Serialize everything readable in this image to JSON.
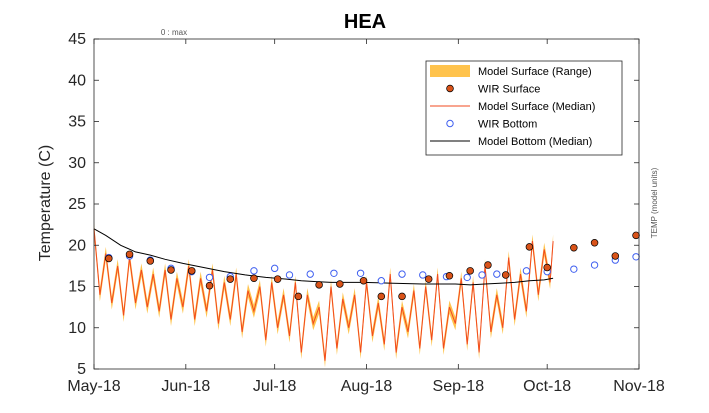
{
  "chart_data": {
    "type": "line",
    "title": "HEA",
    "ylabel": "Temperature (C)",
    "xlabel": "",
    "right_label": "TEMP (model units)",
    "top_note": "0 : max",
    "ylim": [
      5,
      45
    ],
    "yticks": [
      5,
      10,
      15,
      20,
      25,
      30,
      35,
      40,
      45
    ],
    "xlim": [
      "2018-05-01",
      "2018-11-01"
    ],
    "xticks": [
      {
        "date": "2018-05-01",
        "label": "May-18"
      },
      {
        "date": "2018-06-01",
        "label": "Jun-18"
      },
      {
        "date": "2018-07-01",
        "label": "Jul-18"
      },
      {
        "date": "2018-08-01",
        "label": "Aug-18"
      },
      {
        "date": "2018-09-01",
        "label": "Sep-18"
      },
      {
        "date": "2018-10-01",
        "label": "Oct-18"
      },
      {
        "date": "2018-11-01",
        "label": "Nov-18"
      }
    ],
    "grid": false,
    "legend_position": "top-right",
    "legend": [
      {
        "label": "Model Surface (Range)",
        "kind": "patch",
        "color": "#FFC34D"
      },
      {
        "label": "WIR Surface",
        "kind": "filled-circle",
        "color": "#D95319"
      },
      {
        "label": "Model Surface (Median)",
        "kind": "line",
        "color": "#F24A1F"
      },
      {
        "label": "WIR Bottom",
        "kind": "open-circle",
        "color": "#4060F0"
      },
      {
        "label": "Model Bottom (Median)",
        "kind": "line",
        "color": "#000000"
      }
    ],
    "series": [
      {
        "name": "WIR Surface",
        "marker": "filled-circle",
        "color": "#D95319",
        "x": [
          "2018-05-06",
          "2018-05-13",
          "2018-05-20",
          "2018-05-27",
          "2018-06-03",
          "2018-06-09",
          "2018-06-16",
          "2018-06-24",
          "2018-07-02",
          "2018-07-09",
          "2018-07-16",
          "2018-07-23",
          "2018-07-31",
          "2018-08-06",
          "2018-08-13",
          "2018-08-22",
          "2018-08-29",
          "2018-09-05",
          "2018-09-11",
          "2018-09-17",
          "2018-09-25",
          "2018-10-01",
          "2018-10-10",
          "2018-10-17",
          "2018-10-24",
          "2018-10-31"
        ],
        "y": [
          18.4,
          18.9,
          18.1,
          17.0,
          16.9,
          15.1,
          15.9,
          16.0,
          15.9,
          13.8,
          15.2,
          15.3,
          15.7,
          13.8,
          13.8,
          15.9,
          16.3,
          16.9,
          17.6,
          16.4,
          19.8,
          17.3,
          19.7,
          20.3,
          18.7,
          21.2
        ]
      },
      {
        "name": "WIR Bottom",
        "marker": "open-circle",
        "color": "#4060F0",
        "x": [
          "2018-05-06",
          "2018-05-13",
          "2018-05-20",
          "2018-05-27",
          "2018-06-03",
          "2018-06-09",
          "2018-06-16",
          "2018-06-24",
          "2018-07-01",
          "2018-07-06",
          "2018-07-13",
          "2018-07-21",
          "2018-07-30",
          "2018-08-06",
          "2018-08-13",
          "2018-08-20",
          "2018-08-28",
          "2018-09-04",
          "2018-09-09",
          "2018-09-14",
          "2018-09-24",
          "2018-10-01",
          "2018-10-10",
          "2018-10-17",
          "2018-10-24",
          "2018-10-31"
        ],
        "y": [
          18.5,
          18.7,
          18.2,
          17.2,
          16.8,
          16.1,
          16.2,
          16.9,
          17.2,
          16.4,
          16.5,
          16.6,
          16.6,
          15.7,
          16.5,
          16.4,
          16.2,
          16.1,
          16.4,
          16.5,
          16.9,
          16.8,
          17.1,
          17.6,
          18.2,
          18.6
        ]
      },
      {
        "name": "Model Bottom (Median)",
        "line": true,
        "color": "#000000",
        "x": [
          "2018-05-01",
          "2018-05-05",
          "2018-05-10",
          "2018-05-15",
          "2018-05-20",
          "2018-05-25",
          "2018-05-31",
          "2018-06-07",
          "2018-06-14",
          "2018-06-21",
          "2018-06-28",
          "2018-07-05",
          "2018-07-10",
          "2018-07-15",
          "2018-07-20",
          "2018-07-31",
          "2018-08-10",
          "2018-08-20",
          "2018-08-31",
          "2018-09-05",
          "2018-09-10",
          "2018-09-15",
          "2018-09-20",
          "2018-09-25",
          "2018-09-30",
          "2018-10-03"
        ],
        "y": [
          22.0,
          21.2,
          20.0,
          19.2,
          18.8,
          18.3,
          17.8,
          17.3,
          16.8,
          16.4,
          16.1,
          15.9,
          15.7,
          15.6,
          15.5,
          15.5,
          15.4,
          15.3,
          15.3,
          15.2,
          15.3,
          15.4,
          15.5,
          15.7,
          15.8,
          16.0
        ]
      },
      {
        "name": "Model Surface (Median)",
        "line": true,
        "color": "#F24A1F",
        "x": [
          "2018-05-01",
          "2018-05-03",
          "2018-05-05",
          "2018-05-07",
          "2018-05-09",
          "2018-05-11",
          "2018-05-13",
          "2018-05-15",
          "2018-05-17",
          "2018-05-19",
          "2018-05-21",
          "2018-05-23",
          "2018-05-25",
          "2018-05-27",
          "2018-05-29",
          "2018-05-31",
          "2018-06-02",
          "2018-06-04",
          "2018-06-06",
          "2018-06-08",
          "2018-06-10",
          "2018-06-12",
          "2018-06-14",
          "2018-06-16",
          "2018-06-18",
          "2018-06-20",
          "2018-06-22",
          "2018-06-24",
          "2018-06-26",
          "2018-06-28",
          "2018-06-30",
          "2018-07-02",
          "2018-07-04",
          "2018-07-06",
          "2018-07-08",
          "2018-07-10",
          "2018-07-12",
          "2018-07-14",
          "2018-07-16",
          "2018-07-18",
          "2018-07-20",
          "2018-07-22",
          "2018-07-24",
          "2018-07-26",
          "2018-07-28",
          "2018-07-30",
          "2018-08-01",
          "2018-08-03",
          "2018-08-05",
          "2018-08-07",
          "2018-08-09",
          "2018-08-11",
          "2018-08-13",
          "2018-08-15",
          "2018-08-17",
          "2018-08-19",
          "2018-08-21",
          "2018-08-23",
          "2018-08-25",
          "2018-08-27",
          "2018-08-29",
          "2018-08-31",
          "2018-09-02",
          "2018-09-04",
          "2018-09-06",
          "2018-09-08",
          "2018-09-10",
          "2018-09-12",
          "2018-09-14",
          "2018-09-16",
          "2018-09-18",
          "2018-09-20",
          "2018-09-22",
          "2018-09-24",
          "2018-09-26",
          "2018-09-28",
          "2018-09-30",
          "2018-10-02",
          "2018-10-03"
        ],
        "y": [
          22.0,
          14.0,
          19.0,
          13.0,
          17.5,
          11.5,
          18.5,
          13.0,
          17.0,
          12.5,
          16.5,
          12.0,
          17.0,
          11.0,
          16.0,
          12.5,
          17.5,
          11.0,
          16.0,
          12.0,
          17.0,
          10.5,
          15.5,
          11.0,
          16.5,
          9.5,
          14.5,
          12.0,
          15.0,
          8.5,
          15.5,
          10.0,
          14.0,
          9.0,
          15.5,
          7.0,
          14.0,
          10.5,
          12.5,
          6.0,
          15.0,
          7.5,
          13.5,
          10.0,
          14.0,
          7.0,
          15.5,
          9.0,
          13.0,
          8.0,
          16.5,
          7.0,
          12.5,
          9.5,
          14.5,
          7.5,
          15.0,
          8.5,
          16.5,
          7.5,
          12.5,
          10.5,
          16.0,
          8.0,
          15.5,
          7.0,
          17.5,
          9.5,
          14.0,
          10.0,
          18.5,
          11.0,
          16.5,
          12.0,
          20.5,
          14.0,
          19.5,
          15.5,
          20.5
        ]
      }
    ],
    "surface_range_band": {
      "name": "Model Surface (Range)",
      "color": "#FFC34D",
      "offset": 0.8
    }
  }
}
